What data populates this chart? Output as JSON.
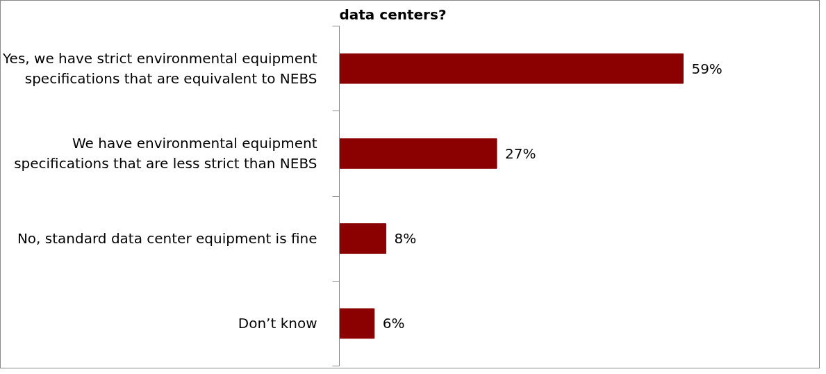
{
  "chart_data": {
    "type": "bar",
    "orientation": "horizontal",
    "title": "data centers?",
    "categories": [
      "Yes, we have strict environmental equipment specifications that are equivalent to NEBS",
      "We have environmental equipment specifications that are less strict than NEBS",
      "No, standard data center equipment is fine",
      "Don’t know"
    ],
    "values": [
      59,
      27,
      8,
      6
    ],
    "color": "#8b0000",
    "value_labels": [
      "59%",
      "27%",
      "8%",
      "6%"
    ],
    "grid": false,
    "tick_labels": "y"
  }
}
